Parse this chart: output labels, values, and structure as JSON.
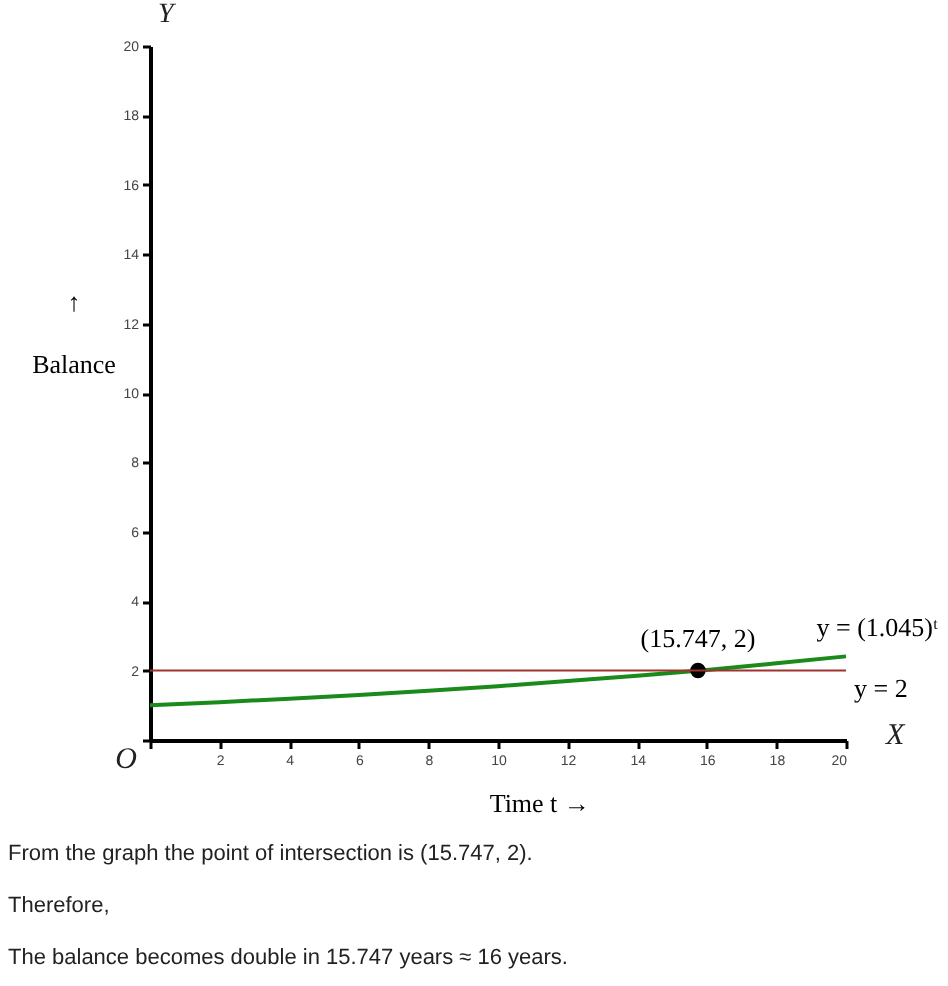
{
  "chart_data": {
    "type": "line",
    "xlabel": "Time t →",
    "ylabel": "↑\nBalance",
    "x": [
      0,
      2,
      4,
      6,
      8,
      10,
      12,
      14,
      16,
      18,
      20
    ],
    "series": [
      {
        "color": "#1a8a1a",
        "values": [
          1,
          1.09,
          1.19,
          1.3,
          1.42,
          1.55,
          1.7,
          1.85,
          2.02,
          2.21,
          2.41
        ]
      },
      {
        "type": "scatter",
        "color": "#000000",
        "x": [
          15.747
        ],
        "values": [
          2
        ],
        "marker": "circle"
      }
    ],
    "ref_lines": [
      {
        "axis": "y",
        "value": 2,
        "label": "y = 2",
        "color": "#a0312f"
      }
    ],
    "annotations": [
      {
        "text": "(15.747, 2)",
        "x": 15.747,
        "y": 2
      },
      {
        "text": "y = (1.045)ᵗ",
        "x": 20,
        "y": 2.41
      },
      "Y",
      "X",
      "O",
      "From the graph the point of intersection is (15.747, 2).",
      "Therefore,",
      "The balance becomes double in 15.747 years ≈ 16 years."
    ],
    "xlim": [
      0,
      20
    ],
    "ylim": [
      0,
      20
    ],
    "xticks": [
      {
        "value": 0,
        "label": null
      },
      2,
      4,
      6,
      8,
      10,
      12,
      14,
      16,
      18,
      20
    ],
    "yticks": [
      {
        "value": 0,
        "label": null
      },
      2,
      4,
      6,
      8,
      10,
      12,
      14,
      16,
      18,
      20
    ],
    "grid": false,
    "marker": "none",
    "line_style": "solid"
  }
}
